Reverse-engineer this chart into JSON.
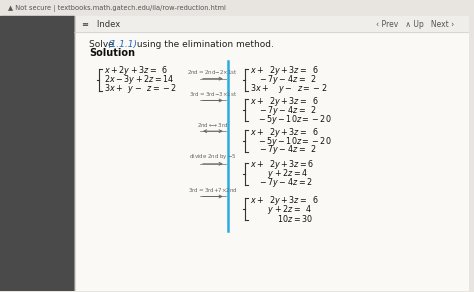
{
  "bg_color": "#faf9f5",
  "browser_bar_color": "#e8e4df",
  "sidebar_color": "#4a4a4a",
  "nav_bg": "#ffffff",
  "blue_line_color": "#29abe2",
  "link_color": "#2266bb",
  "arrow_color": "#666666",
  "math_color": "#111111",
  "browser_text": "▲ Not secure | textbooks.math.gatech.edu/ila/row-reduction.html",
  "nav_text": "≡   Index",
  "nav_right": "‹ Prev   ∧ Up   Next ›",
  "title_plain": "Solve ",
  "title_link": "(1.1.1)",
  "title_rest": " using the elimination method.",
  "solution": "Solution"
}
